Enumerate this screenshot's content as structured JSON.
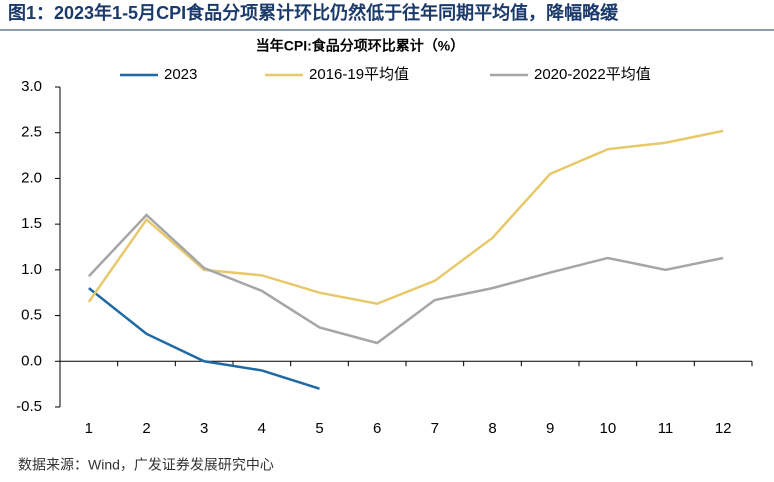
{
  "chart_data": {
    "type": "line",
    "title": "图1：2023年1-5月CPI食品分项累计环比仍然低于往年同期平均值，降幅略缓",
    "subtitle": "当年CPI:食品分项环比累计（%）",
    "source": "数据来源：Wind，广发证券发展研究中心",
    "categories": [
      "1",
      "2",
      "3",
      "4",
      "5",
      "6",
      "7",
      "8",
      "9",
      "10",
      "11",
      "12"
    ],
    "series": [
      {
        "name": "2023",
        "color": "#1f6aa5",
        "values": [
          0.8,
          0.3,
          0.0,
          -0.1,
          -0.3,
          null,
          null,
          null,
          null,
          null,
          null,
          null
        ]
      },
      {
        "name": "2016-19平均值",
        "color": "#e8c96a",
        "values": [
          0.65,
          1.55,
          1.0,
          0.94,
          0.75,
          0.63,
          0.88,
          1.35,
          2.05,
          2.32,
          2.39,
          2.52
        ]
      },
      {
        "name": "2020-2022平均值",
        "color": "#a6a6a6",
        "values": [
          0.93,
          1.6,
          1.02,
          0.77,
          0.37,
          0.2,
          0.67,
          0.8,
          0.97,
          1.13,
          1.0,
          1.13
        ]
      }
    ],
    "ylim": [
      -0.5,
      3.0
    ],
    "yticks": [
      {
        "value": -0.5,
        "label": "-0.5"
      },
      {
        "value": 0,
        "label": "0.0"
      },
      {
        "value": 0.5,
        "label": "0.5"
      },
      {
        "value": 1,
        "label": "1.0"
      },
      {
        "value": 1.5,
        "label": "1.5"
      },
      {
        "value": 2,
        "label": "2.0"
      },
      {
        "value": 2.5,
        "label": "2.5"
      },
      {
        "value": 3,
        "label": "3.0"
      }
    ]
  }
}
